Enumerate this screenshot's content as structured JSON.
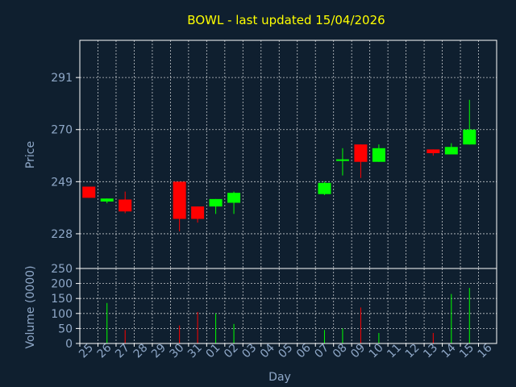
{
  "chart_data": [
    {
      "type": "candlestick",
      "title": "BOWL - last updated 15/04/2026",
      "ylabel": "Price",
      "ylim": [
        214,
        306
      ],
      "yticks": [
        228,
        249,
        270,
        291
      ],
      "grid": true,
      "colors": {
        "up": "#00ff00",
        "down": "#ff0000",
        "background": "#0f1f2f",
        "text": "#8fa8c8",
        "title": "#ffff00"
      },
      "x": [
        "25",
        "26",
        "27",
        "28",
        "29",
        "30",
        "31",
        "01",
        "02",
        "03",
        "04",
        "05",
        "06",
        "07",
        "08",
        "09",
        "10",
        "11",
        "12",
        "13",
        "14",
        "15",
        "16"
      ],
      "candles": [
        {
          "x": "25",
          "open": 247,
          "high": 247,
          "low": 242.5,
          "close": 242.5
        },
        {
          "x": "26",
          "open": 241,
          "high": 242.2,
          "low": 240.3,
          "close": 242.2
        },
        {
          "x": "27",
          "open": 241.8,
          "high": 245,
          "low": 236.3,
          "close": 237
        },
        {
          "x": "30",
          "open": 249,
          "high": 249,
          "low": 229,
          "close": 234
        },
        {
          "x": "31",
          "open": 239,
          "high": 239,
          "low": 232.5,
          "close": 234
        },
        {
          "x": "01",
          "open": 239,
          "high": 242,
          "low": 236,
          "close": 242
        },
        {
          "x": "02",
          "open": 240.5,
          "high": 245,
          "low": 236,
          "close": 244.5
        },
        {
          "x": "07",
          "open": 244,
          "high": 249,
          "low": 243.6,
          "close": 248.5
        },
        {
          "x": "08",
          "open": 258,
          "high": 262.5,
          "low": 251.5,
          "close": 258
        },
        {
          "x": "09",
          "open": 264,
          "high": 264,
          "low": 250.5,
          "close": 257
        },
        {
          "x": "10",
          "open": 257,
          "high": 264,
          "low": 257,
          "close": 262.5
        },
        {
          "x": "13",
          "open": 262,
          "high": 262,
          "low": 259.5,
          "close": 260.5
        },
        {
          "x": "14",
          "open": 260,
          "high": 264.5,
          "low": 260,
          "close": 263
        },
        {
          "x": "15",
          "open": 264,
          "high": 282,
          "low": 264,
          "close": 270
        }
      ]
    },
    {
      "type": "bar",
      "ylabel": "Volume (0000)",
      "xlabel": "Day",
      "ylim": [
        0,
        250
      ],
      "yticks": [
        0,
        50,
        100,
        150,
        200,
        250
      ],
      "x": [
        "25",
        "26",
        "27",
        "28",
        "29",
        "30",
        "31",
        "01",
        "02",
        "03",
        "04",
        "05",
        "06",
        "07",
        "08",
        "09",
        "10",
        "11",
        "12",
        "13",
        "14",
        "15",
        "16"
      ],
      "volumes": [
        {
          "x": "26",
          "value": 135,
          "direction": "up"
        },
        {
          "x": "27",
          "value": 45,
          "direction": "down"
        },
        {
          "x": "30",
          "value": 60,
          "direction": "down"
        },
        {
          "x": "31",
          "value": 105,
          "direction": "down"
        },
        {
          "x": "01",
          "value": 100,
          "direction": "up"
        },
        {
          "x": "02",
          "value": 65,
          "direction": "up"
        },
        {
          "x": "07",
          "value": 45,
          "direction": "up"
        },
        {
          "x": "08",
          "value": 50,
          "direction": "up"
        },
        {
          "x": "09",
          "value": 120,
          "direction": "down"
        },
        {
          "x": "10",
          "value": 35,
          "direction": "up"
        },
        {
          "x": "13",
          "value": 35,
          "direction": "down"
        },
        {
          "x": "14",
          "value": 165,
          "direction": "up"
        },
        {
          "x": "15",
          "value": 185,
          "direction": "up"
        }
      ]
    }
  ]
}
